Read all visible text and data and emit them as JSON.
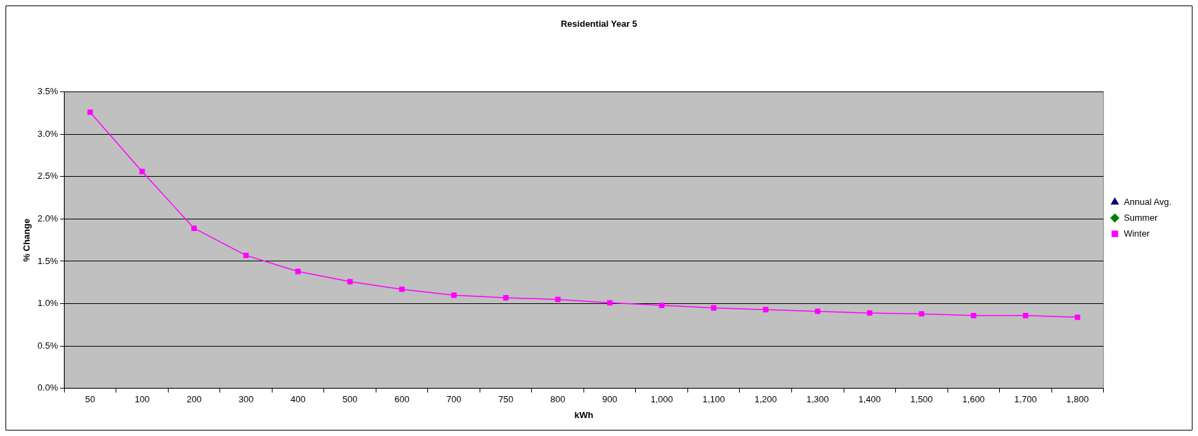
{
  "chart_data": {
    "type": "line",
    "title": "Residential Year 5",
    "xlabel": "kWh",
    "ylabel": "% Change",
    "categories": [
      "50",
      "100",
      "200",
      "300",
      "400",
      "500",
      "600",
      "700",
      "750",
      "800",
      "900",
      "1,000",
      "1,100",
      "1,200",
      "1,300",
      "1,400",
      "1,500",
      "1,600",
      "1,700",
      "1,800"
    ],
    "series": [
      {
        "name": "Annual Avg.",
        "color": "#000080",
        "marker": "triangle",
        "values": [
          null,
          null,
          null,
          null,
          null,
          null,
          null,
          null,
          null,
          null,
          null,
          null,
          null,
          null,
          null,
          null,
          null,
          null,
          null,
          null
        ]
      },
      {
        "name": "Summer",
        "color": "#008000",
        "marker": "diamond",
        "values": [
          null,
          null,
          null,
          null,
          null,
          null,
          null,
          null,
          null,
          null,
          null,
          null,
          null,
          null,
          null,
          null,
          null,
          null,
          null,
          null
        ]
      },
      {
        "name": "Winter",
        "color": "#ff00ff",
        "marker": "square",
        "values": [
          3.26,
          2.56,
          1.89,
          1.57,
          1.38,
          1.26,
          1.17,
          1.1,
          1.07,
          1.05,
          1.01,
          0.98,
          0.95,
          0.93,
          0.91,
          0.89,
          0.88,
          0.86,
          0.86,
          0.84
        ]
      }
    ],
    "ylim": [
      0,
      3.5
    ],
    "yticks": [
      {
        "value": 0,
        "label": "0.0%"
      },
      {
        "value": 0.5,
        "label": "0.5%"
      },
      {
        "value": 1,
        "label": "1.0%"
      },
      {
        "value": 1.5,
        "label": "1.5%"
      },
      {
        "value": 2,
        "label": "2.0%"
      },
      {
        "value": 2.5,
        "label": "2.5%"
      },
      {
        "value": 3,
        "label": "3.0%"
      },
      {
        "value": 3.5,
        "label": "3.5%"
      }
    ],
    "grid": "y",
    "legend": "right"
  }
}
